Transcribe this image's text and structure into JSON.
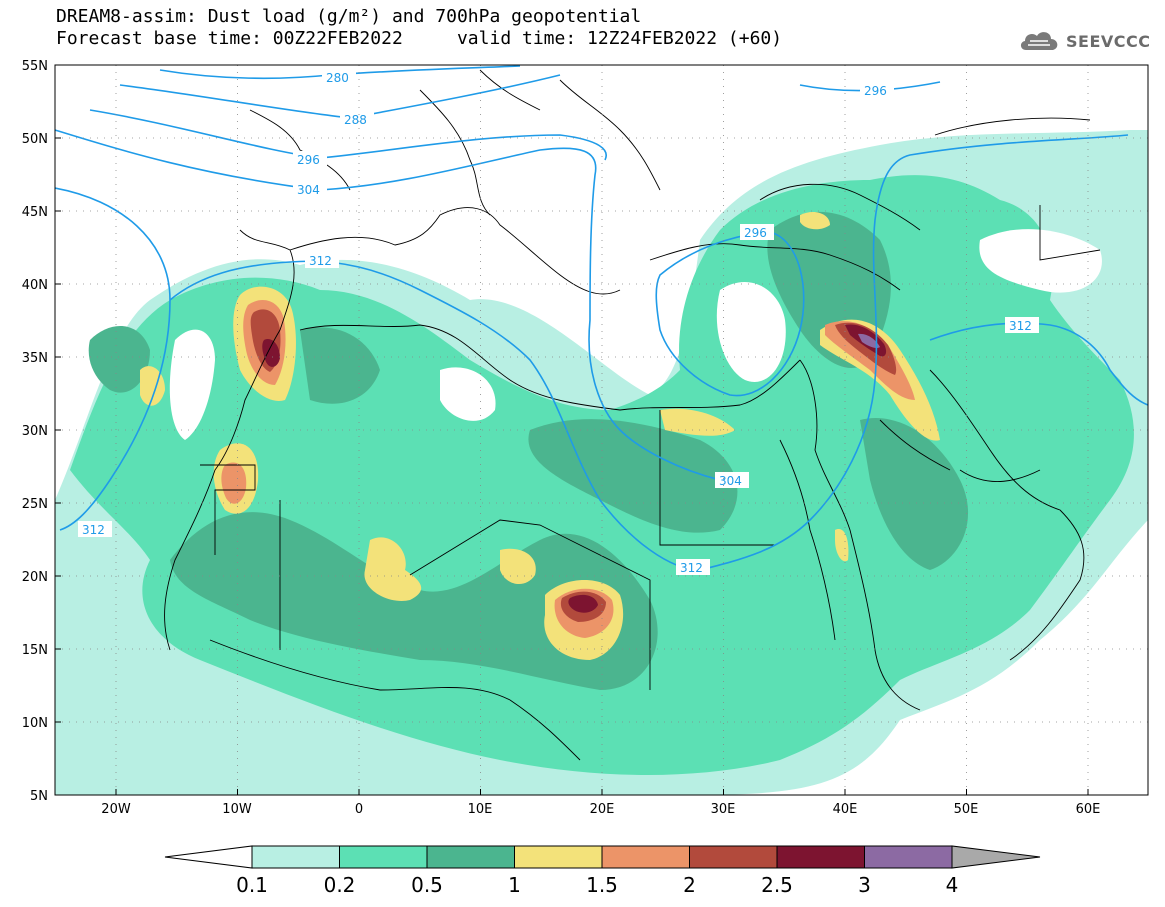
{
  "title": {
    "line1": "DREAM8-assim: Dust load (g/m²) and 700hPa geopotential",
    "line2_base": "Forecast base time: 00Z22FEB2022",
    "line2_valid": "valid time: 12Z24FEB2022 (+60)"
  },
  "logo": {
    "text": "SEEVCCC",
    "icon": "cloud-icon"
  },
  "map": {
    "lat_labels": [
      "55N",
      "50N",
      "45N",
      "40N",
      "35N",
      "30N",
      "25N",
      "20N",
      "15N",
      "10N",
      "5N"
    ],
    "lon_labels": [
      "20W",
      "10W",
      "0",
      "10E",
      "20E",
      "30E",
      "40E",
      "50E",
      "60E"
    ],
    "contour_labels": [
      "280",
      "288",
      "296",
      "304",
      "312",
      "296",
      "296",
      "312",
      "304",
      "312",
      "312"
    ]
  },
  "legend": {
    "ticks": [
      "0.1",
      "0.2",
      "0.5",
      "1",
      "1.5",
      "2",
      "2.5",
      "3",
      "4"
    ],
    "colors": [
      "#ffffff",
      "#b8efe3",
      "#5ce0b4",
      "#4bb58f",
      "#f3e27a",
      "#ec9468",
      "#b24a3c",
      "#7d1430",
      "#8c6aa3",
      "#a9a9a9"
    ]
  }
}
